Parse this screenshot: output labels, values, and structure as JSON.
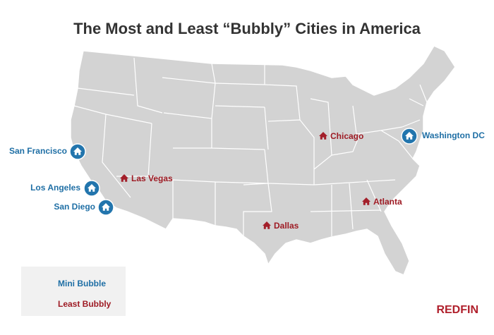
{
  "title": "The Most and Least “Bubbly” Cities in America",
  "mini_bubble_cities": [
    "San Francisco",
    "Los Angeles",
    "San Diego",
    "Washington DC"
  ],
  "least_bubbly_cities": [
    "Chicago",
    "Las Vegas",
    "Dallas",
    "Atlanta"
  ],
  "legend": {
    "mini_bubble": "Mini Bubble",
    "least_bubbly": "Least Bubbly"
  },
  "brand": "REDFIN"
}
